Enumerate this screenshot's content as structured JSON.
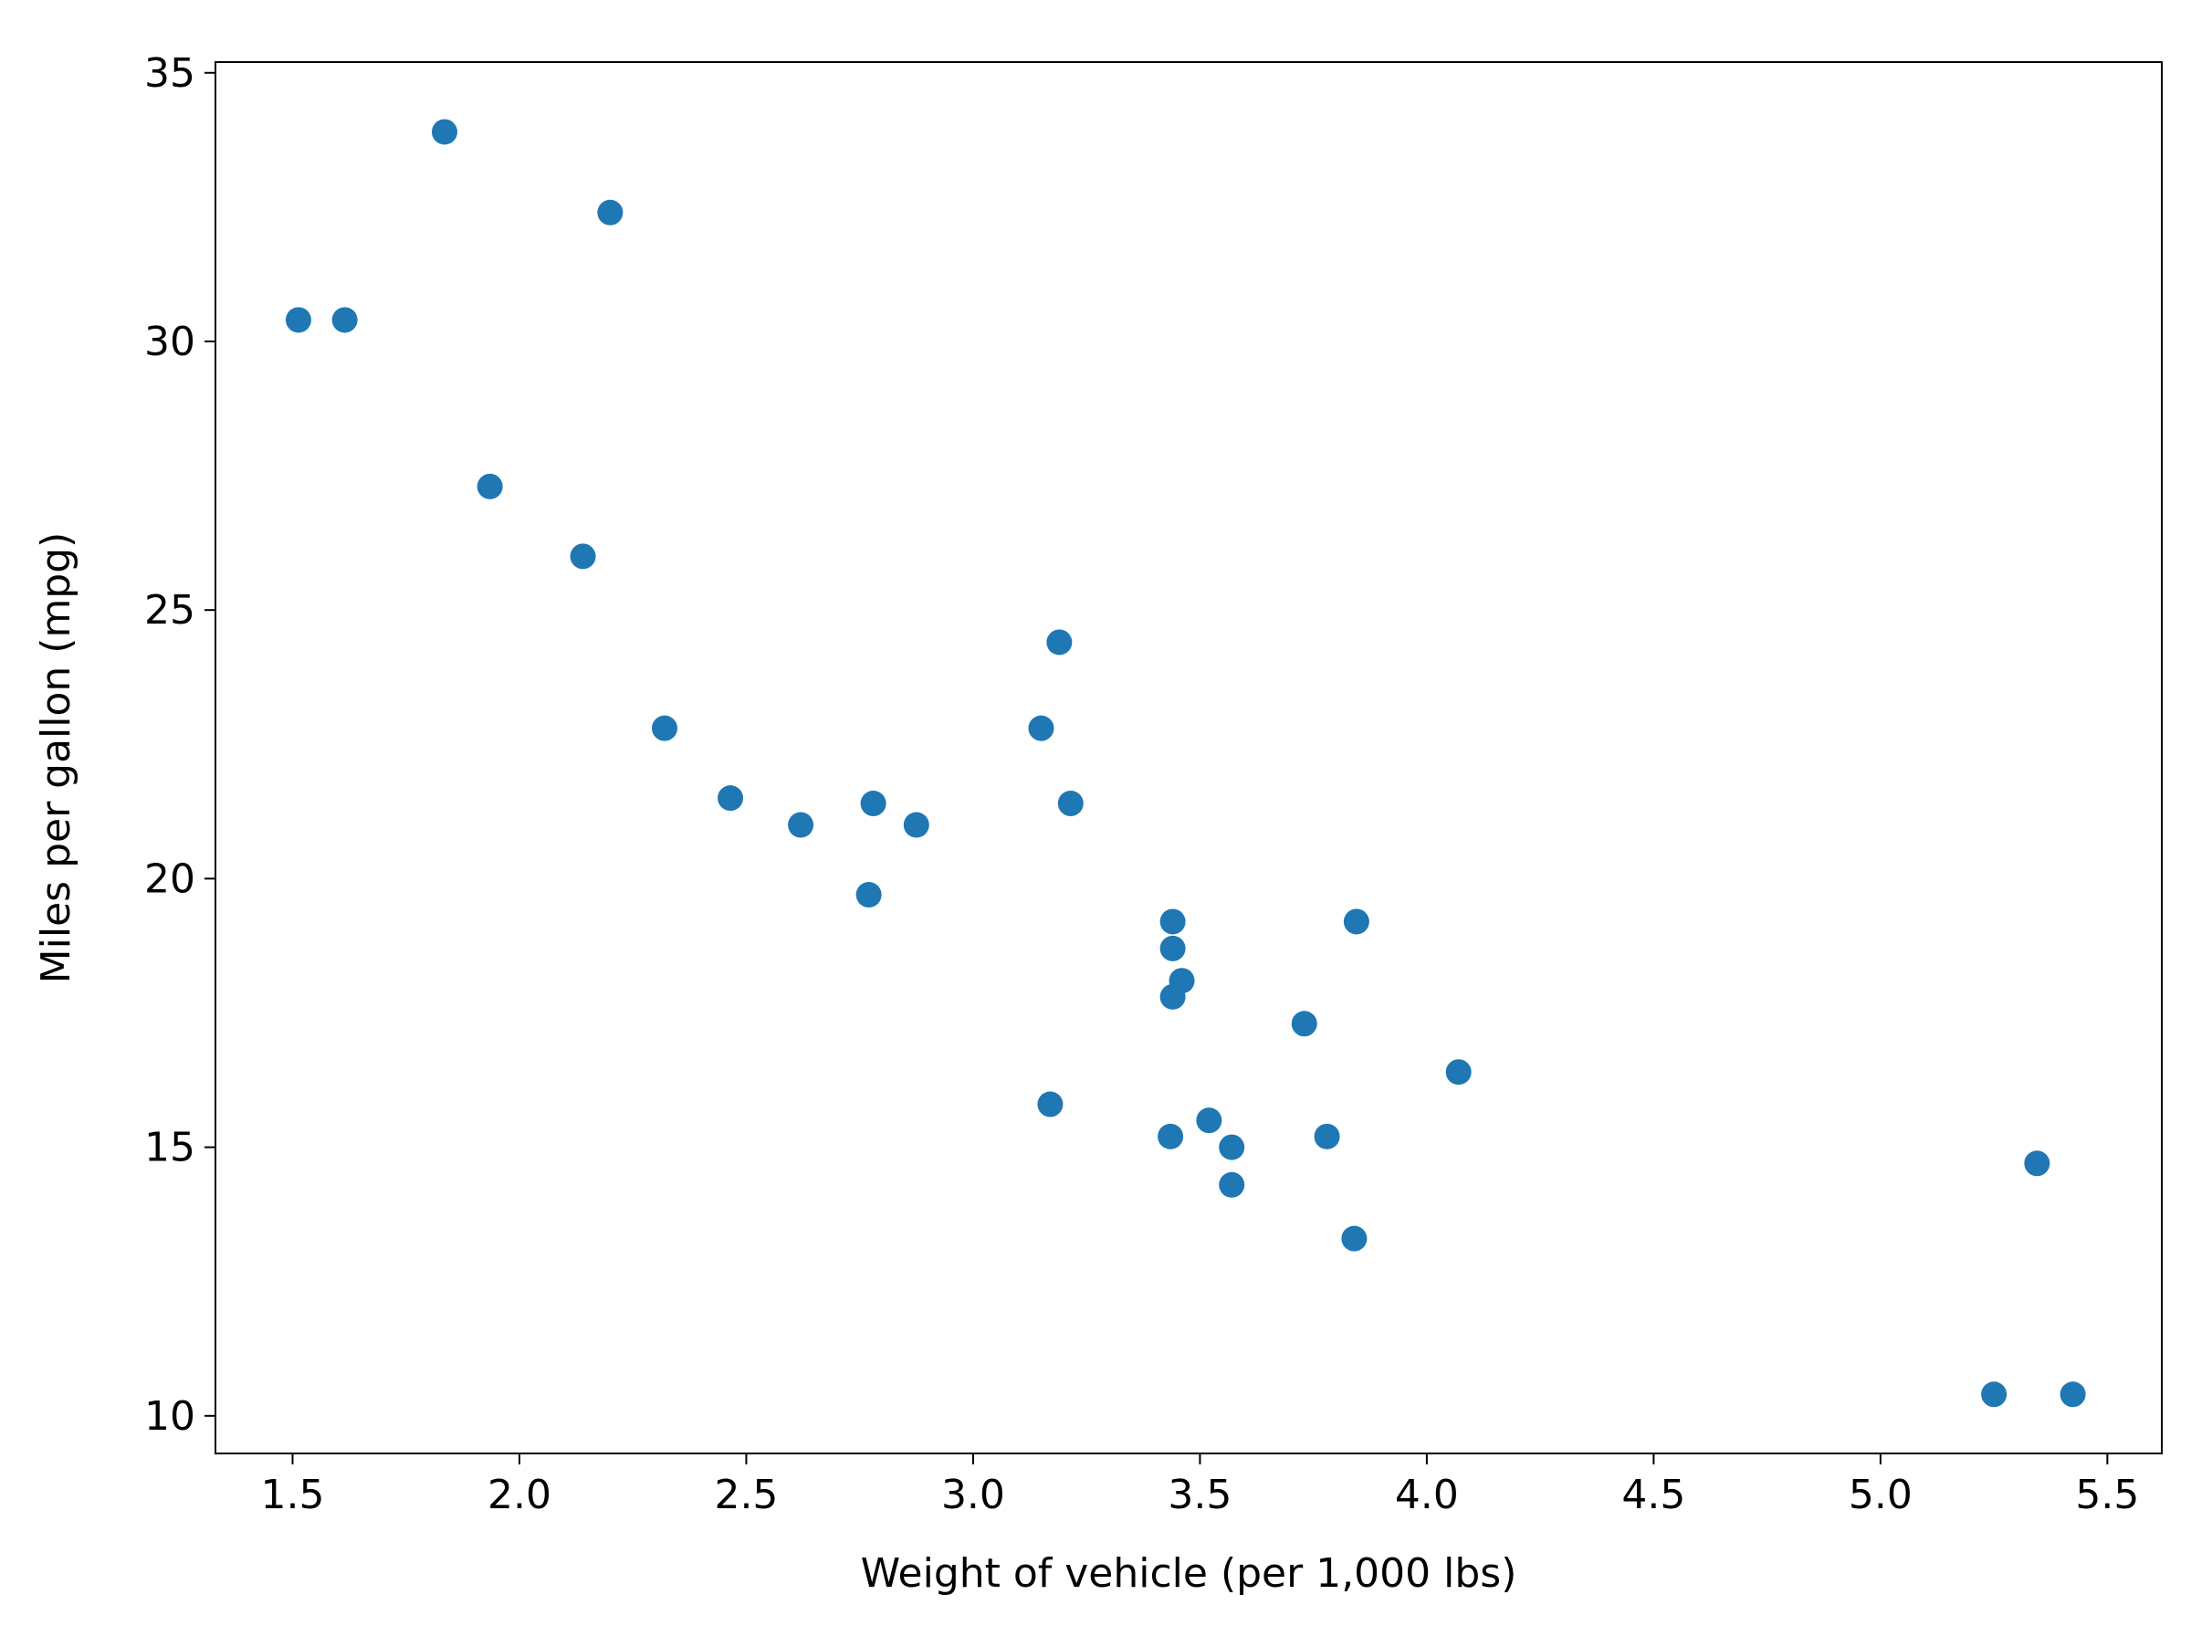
{
  "chart_data": {
    "type": "scatter",
    "title": "",
    "xlabel": "Weight of vehicle (per 1,000 lbs)",
    "ylabel": "Miles per gallon (mpg)",
    "xlim": [
      1.33,
      5.62
    ],
    "ylim": [
      9.3,
      35.2
    ],
    "xticks": [
      1.5,
      2.0,
      2.5,
      3.0,
      3.5,
      4.0,
      4.5,
      5.0,
      5.5
    ],
    "xtick_labels": [
      "1.5",
      "2.0",
      "2.5",
      "3.0",
      "3.5",
      "4.0",
      "4.5",
      "5.0",
      "5.5"
    ],
    "yticks": [
      10,
      15,
      20,
      25,
      30,
      35
    ],
    "ytick_labels": [
      "10",
      "15",
      "20",
      "25",
      "30",
      "35"
    ],
    "grid": false,
    "marker_color": "#1f77b4",
    "series": [
      {
        "x": [
          2.62,
          2.875,
          2.32,
          3.215,
          3.44,
          3.46,
          3.57,
          3.19,
          3.15,
          3.44,
          3.44,
          4.07,
          3.73,
          3.78,
          5.25,
          5.424,
          5.345,
          2.2,
          1.615,
          1.835,
          2.465,
          3.52,
          3.435,
          3.84,
          3.845,
          1.935,
          2.14,
          1.513,
          3.17,
          2.77,
          3.57,
          2.78
        ],
        "y": [
          21.0,
          21.0,
          22.8,
          21.4,
          18.7,
          18.1,
          14.3,
          24.4,
          22.8,
          19.2,
          17.8,
          16.4,
          17.3,
          15.2,
          10.4,
          10.4,
          14.7,
          32.4,
          30.4,
          33.9,
          21.5,
          15.5,
          15.2,
          13.3,
          19.2,
          27.3,
          26.0,
          30.4,
          15.8,
          19.7,
          15.0,
          21.4
        ]
      }
    ]
  }
}
